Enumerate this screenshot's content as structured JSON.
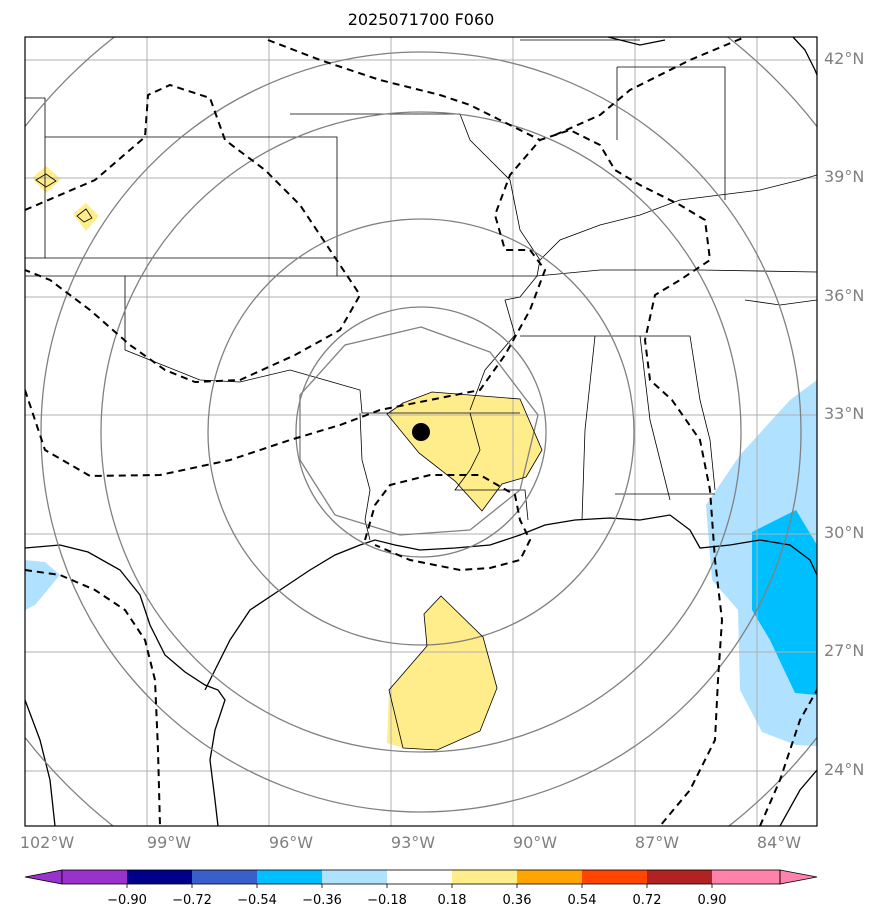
{
  "title": "2025071700 F060",
  "map": {
    "lon_labels": [
      "102°W",
      "99°W",
      "96°W",
      "93°W",
      "90°W",
      "87°W",
      "84°W"
    ],
    "lat_labels": [
      "42°N",
      "39°N",
      "36°N",
      "33°N",
      "30°N",
      "27°N",
      "24°N"
    ],
    "extent": {
      "lon": [
        -102,
        -82.5
      ],
      "lat": [
        22.5,
        43
      ]
    },
    "grid": true,
    "marker": {
      "lon": -92.5,
      "lat": 32.6,
      "color": "#000000"
    },
    "range_rings": "concentric grey circles centered near marker"
  },
  "colorbar": {
    "ticks": [
      "−0.90",
      "−0.72",
      "−0.54",
      "−0.36",
      "−0.18",
      "0.18",
      "0.36",
      "0.54",
      "0.72",
      "0.90"
    ],
    "colors": [
      "#9932cc",
      "#00008b",
      "#3a5fcd",
      "#00bfff",
      "#b0e2ff",
      "#ffffff",
      "#ffec8b",
      "#ffa500",
      "#ff4500",
      "#b22222",
      "#ff82ab"
    ]
  },
  "fill_colors": {
    "positive_light": "#ffec8b",
    "negative_light": "#b0e2ff",
    "negative_mid": "#00bfff"
  }
}
